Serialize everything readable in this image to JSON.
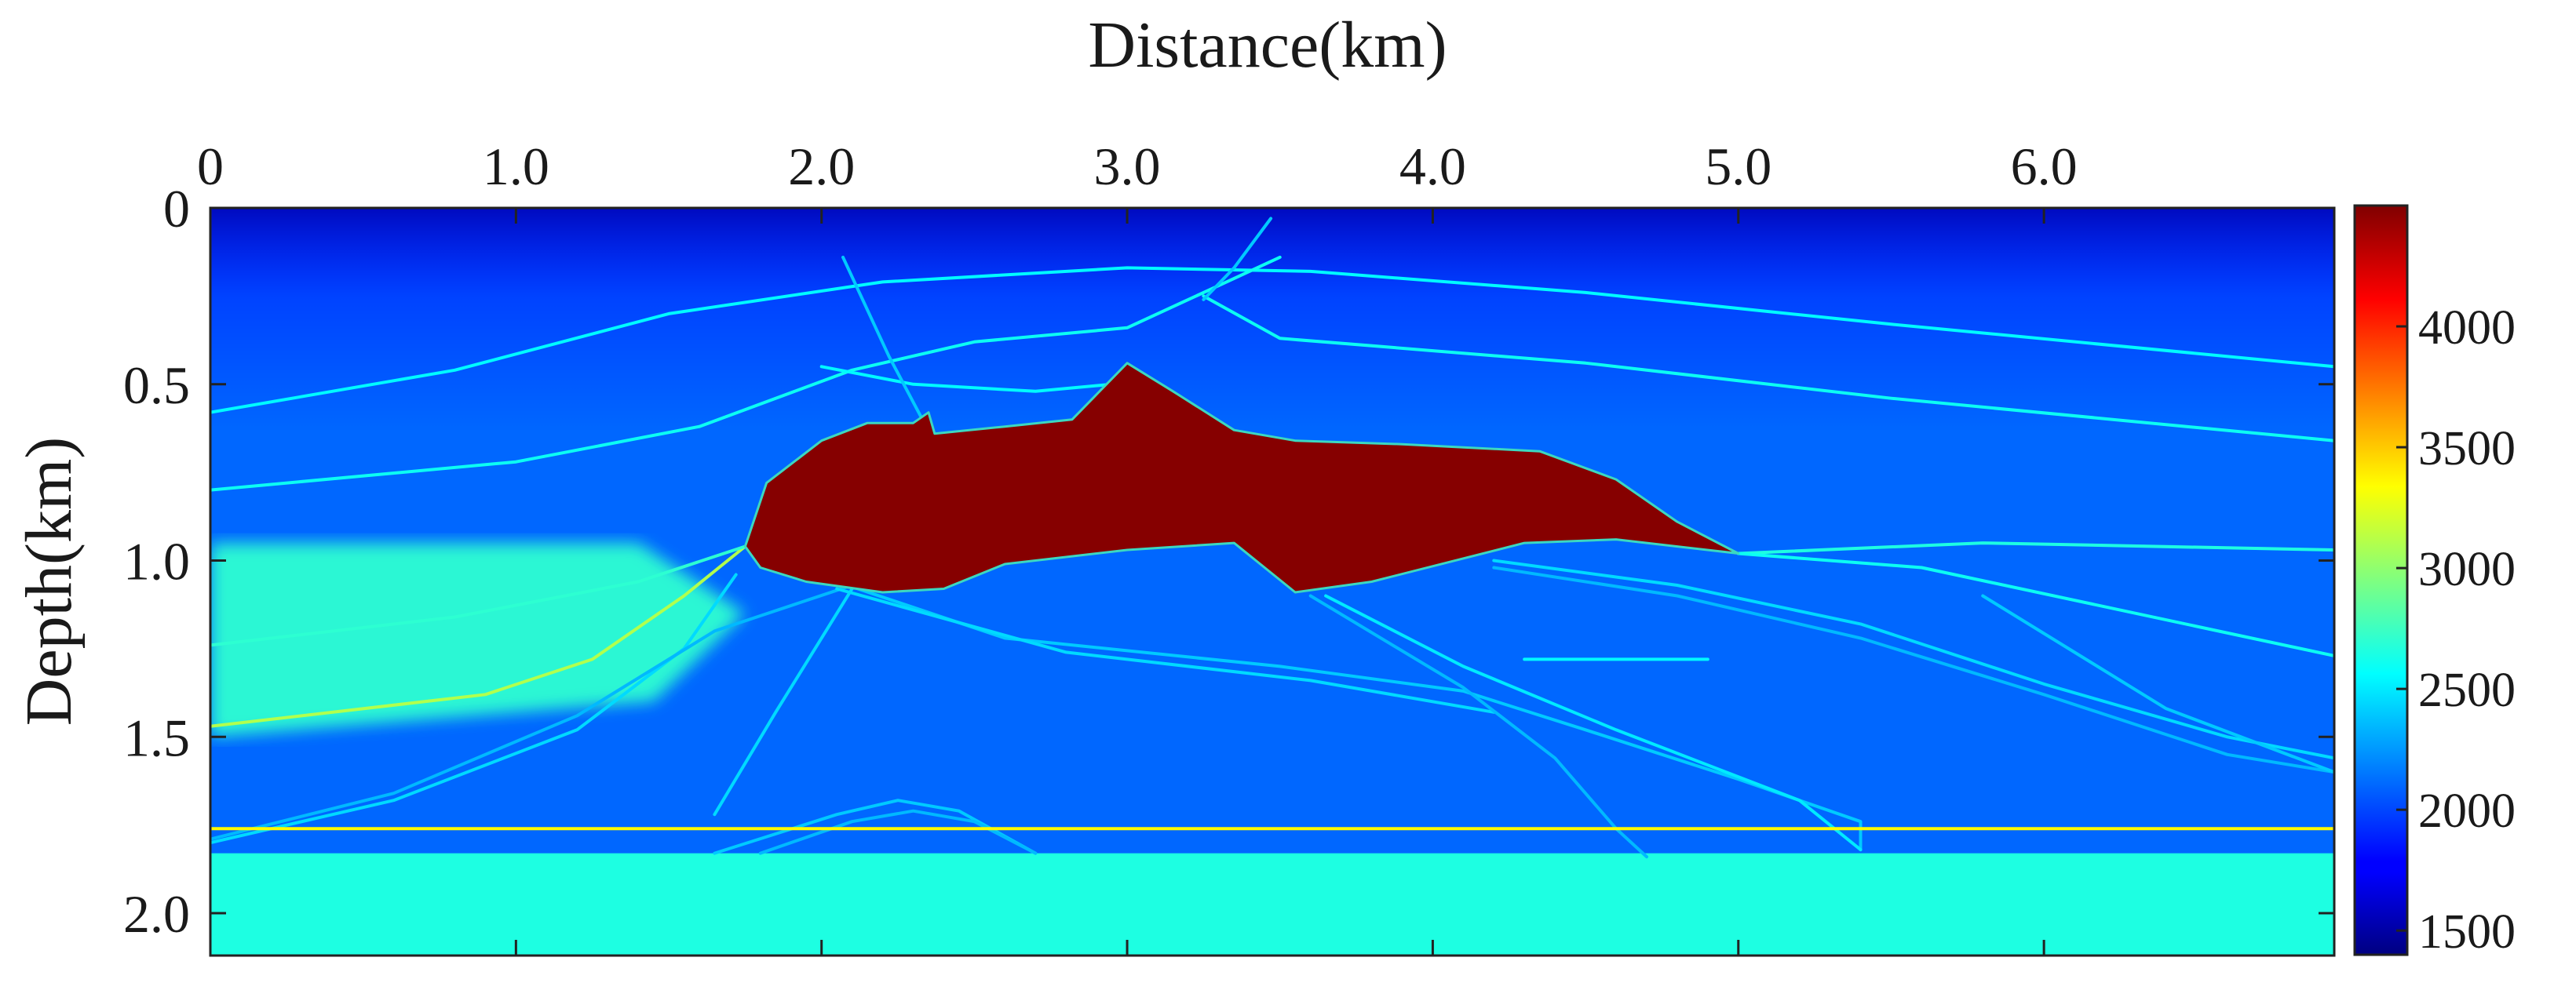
{
  "chart_data": {
    "type": "heatmap",
    "title": "",
    "xlabel": "Distance(km)",
    "ylabel": "Depth(km)",
    "xlim": [
      0,
      6.95
    ],
    "ylim": [
      2.12,
      0
    ],
    "x_ticks": [
      {
        "value": 0,
        "label": "0"
      },
      {
        "value": 1.0,
        "label": "1.0"
      },
      {
        "value": 2.0,
        "label": "2.0"
      },
      {
        "value": 3.0,
        "label": "3.0"
      },
      {
        "value": 4.0,
        "label": "4.0"
      },
      {
        "value": 5.0,
        "label": "5.0"
      },
      {
        "value": 6.0,
        "label": "6.0"
      }
    ],
    "y_ticks": [
      {
        "value": 0,
        "label": "0"
      },
      {
        "value": 0.5,
        "label": "0.5"
      },
      {
        "value": 1.0,
        "label": "1.0"
      },
      {
        "value": 1.5,
        "label": "1.5"
      },
      {
        "value": 2.0,
        "label": "2.0"
      }
    ],
    "colorbar": {
      "range": [
        1400,
        4500
      ],
      "ticks": [
        {
          "value": 1500,
          "label": "1500"
        },
        {
          "value": 2000,
          "label": "2000"
        },
        {
          "value": 2500,
          "label": "2500"
        },
        {
          "value": 3000,
          "label": "3000"
        },
        {
          "value": 3500,
          "label": "3500"
        },
        {
          "value": 4000,
          "label": "4000"
        }
      ],
      "colormap": "jet"
    },
    "background_velocity": 2100,
    "left_wedge": {
      "velocity": 2700,
      "points": [
        [
          0,
          0.95
        ],
        [
          1.4,
          0.95
        ],
        [
          1.75,
          1.15
        ],
        [
          1.45,
          1.4
        ],
        [
          0,
          1.5
        ]
      ]
    },
    "salt_body": {
      "velocity": 4480,
      "outline": [
        [
          1.75,
          0.96
        ],
        [
          1.82,
          0.78
        ],
        [
          2.0,
          0.66
        ],
        [
          2.15,
          0.61
        ],
        [
          2.3,
          0.61
        ],
        [
          2.35,
          0.58
        ],
        [
          2.37,
          0.64
        ],
        [
          2.6,
          0.62
        ],
        [
          2.82,
          0.6
        ],
        [
          3.0,
          0.44
        ],
        [
          3.15,
          0.52
        ],
        [
          3.35,
          0.63
        ],
        [
          3.55,
          0.66
        ],
        [
          3.9,
          0.67
        ],
        [
          4.35,
          0.69
        ],
        [
          4.6,
          0.77
        ],
        [
          4.8,
          0.89
        ],
        [
          5.0,
          0.98
        ],
        [
          4.6,
          0.94
        ],
        [
          4.3,
          0.95
        ],
        [
          3.8,
          1.06
        ],
        [
          3.55,
          1.09
        ],
        [
          3.35,
          0.95
        ],
        [
          3.0,
          0.97
        ],
        [
          2.6,
          1.01
        ],
        [
          2.4,
          1.08
        ],
        [
          2.2,
          1.09
        ],
        [
          1.95,
          1.06
        ],
        [
          1.8,
          1.02
        ]
      ]
    },
    "bottom_layer": {
      "velocity": 2650,
      "top": 1.83,
      "bottom": 2.12
    },
    "horizons": [
      {
        "velocity": 2550,
        "points": [
          [
            0,
            0.58
          ],
          [
            0.8,
            0.46
          ],
          [
            1.5,
            0.3
          ],
          [
            2.2,
            0.21
          ],
          [
            3.0,
            0.17
          ],
          [
            3.6,
            0.18
          ],
          [
            4.5,
            0.24
          ],
          [
            5.5,
            0.33
          ],
          [
            6.95,
            0.45
          ]
        ]
      },
      {
        "velocity": 2600,
        "points": [
          [
            0,
            0.8
          ],
          [
            1.0,
            0.72
          ],
          [
            1.6,
            0.62
          ],
          [
            2.1,
            0.46
          ],
          [
            2.5,
            0.38
          ],
          [
            3.0,
            0.34
          ],
          [
            3.3,
            0.22
          ],
          [
            3.5,
            0.14
          ]
        ]
      },
      {
        "velocity": 2600,
        "points": [
          [
            3.25,
            0.25
          ],
          [
            3.5,
            0.37
          ],
          [
            4.5,
            0.44
          ],
          [
            5.5,
            0.54
          ],
          [
            6.95,
            0.66
          ]
        ]
      },
      {
        "velocity": 2550,
        "points": [
          [
            2.0,
            0.45
          ],
          [
            2.3,
            0.5
          ],
          [
            2.7,
            0.52
          ],
          [
            2.95,
            0.5
          ]
        ]
      },
      {
        "velocity": 2650,
        "points": [
          [
            5.0,
            0.98
          ],
          [
            5.8,
            0.95
          ],
          [
            6.95,
            0.97
          ]
        ]
      },
      {
        "velocity": 3100,
        "points": [
          [
            0,
            1.47
          ],
          [
            0.9,
            1.38
          ],
          [
            1.25,
            1.28
          ],
          [
            1.55,
            1.1
          ],
          [
            1.75,
            0.96
          ]
        ]
      },
      {
        "velocity": 2700,
        "points": [
          [
            0,
            1.24
          ],
          [
            0.8,
            1.16
          ],
          [
            1.4,
            1.06
          ],
          [
            1.75,
            0.96
          ]
        ]
      },
      {
        "velocity": 2450,
        "points": [
          [
            0,
            1.8
          ],
          [
            0.6,
            1.68
          ],
          [
            1.2,
            1.48
          ],
          [
            1.55,
            1.25
          ],
          [
            1.72,
            1.04
          ]
        ]
      },
      {
        "velocity": 2350,
        "points": [
          [
            0,
            1.79
          ],
          [
            0.6,
            1.66
          ],
          [
            1.2,
            1.44
          ],
          [
            1.65,
            1.2
          ],
          [
            2.1,
            1.07
          ]
        ]
      },
      {
        "velocity": 2450,
        "points": [
          [
            1.65,
            1.72
          ],
          [
            1.85,
            1.43
          ],
          [
            2.1,
            1.08
          ]
        ]
      },
      {
        "velocity": 2400,
        "points": [
          [
            2.05,
            1.06
          ],
          [
            2.6,
            1.22
          ],
          [
            3.5,
            1.3
          ],
          [
            4.1,
            1.37
          ],
          [
            4.5,
            1.48
          ],
          [
            5.0,
            1.62
          ],
          [
            5.4,
            1.74
          ],
          [
            5.4,
            1.82
          ]
        ]
      },
      {
        "velocity": 2450,
        "points": [
          [
            2.05,
            1.08
          ],
          [
            2.8,
            1.26
          ],
          [
            3.6,
            1.34
          ],
          [
            4.2,
            1.43
          ]
        ]
      },
      {
        "velocity": 2350,
        "points": [
          [
            3.6,
            1.1
          ],
          [
            4.1,
            1.36
          ],
          [
            4.4,
            1.56
          ],
          [
            4.6,
            1.76
          ],
          [
            4.7,
            1.84
          ]
        ]
      },
      {
        "velocity": 2500,
        "points": [
          [
            3.65,
            1.1
          ],
          [
            4.1,
            1.3
          ],
          [
            4.6,
            1.48
          ],
          [
            5.2,
            1.68
          ],
          [
            5.4,
            1.82
          ]
        ]
      },
      {
        "velocity": 2450,
        "points": [
          [
            4.2,
            1.0
          ],
          [
            4.8,
            1.07
          ],
          [
            5.4,
            1.18
          ],
          [
            6.0,
            1.35
          ],
          [
            6.6,
            1.5
          ],
          [
            6.95,
            1.56
          ]
        ]
      },
      {
        "velocity": 2350,
        "points": [
          [
            4.2,
            1.02
          ],
          [
            4.8,
            1.1
          ],
          [
            5.4,
            1.22
          ],
          [
            6.0,
            1.38
          ],
          [
            6.6,
            1.55
          ],
          [
            6.95,
            1.6
          ]
        ]
      },
      {
        "velocity": 2600,
        "points": [
          [
            5.0,
            0.98
          ],
          [
            5.6,
            1.02
          ],
          [
            6.95,
            1.27
          ]
        ]
      },
      {
        "velocity": 2400,
        "points": [
          [
            5.8,
            1.1
          ],
          [
            6.4,
            1.42
          ],
          [
            6.95,
            1.6
          ]
        ]
      },
      {
        "velocity": 2550,
        "points": [
          [
            4.3,
            1.28
          ],
          [
            4.9,
            1.28
          ]
        ]
      },
      {
        "velocity": 2400,
        "points": [
          [
            1.65,
            1.83
          ],
          [
            2.05,
            1.72
          ],
          [
            2.25,
            1.68
          ],
          [
            2.45,
            1.71
          ],
          [
            2.7,
            1.83
          ]
        ]
      },
      {
        "velocity": 2350,
        "points": [
          [
            1.8,
            1.83
          ],
          [
            2.1,
            1.74
          ],
          [
            2.3,
            1.71
          ],
          [
            2.5,
            1.74
          ],
          [
            2.7,
            1.83
          ]
        ]
      },
      {
        "velocity": 3350,
        "points": [
          [
            0,
            1.76
          ],
          [
            6.95,
            1.76
          ]
        ]
      },
      {
        "velocity": 2400,
        "points": [
          [
            2.07,
            0.14
          ],
          [
            2.22,
            0.42
          ],
          [
            2.33,
            0.6
          ]
        ]
      },
      {
        "velocity": 2400,
        "points": [
          [
            3.47,
            0.03
          ],
          [
            3.35,
            0.17
          ],
          [
            3.25,
            0.26
          ]
        ]
      }
    ]
  }
}
